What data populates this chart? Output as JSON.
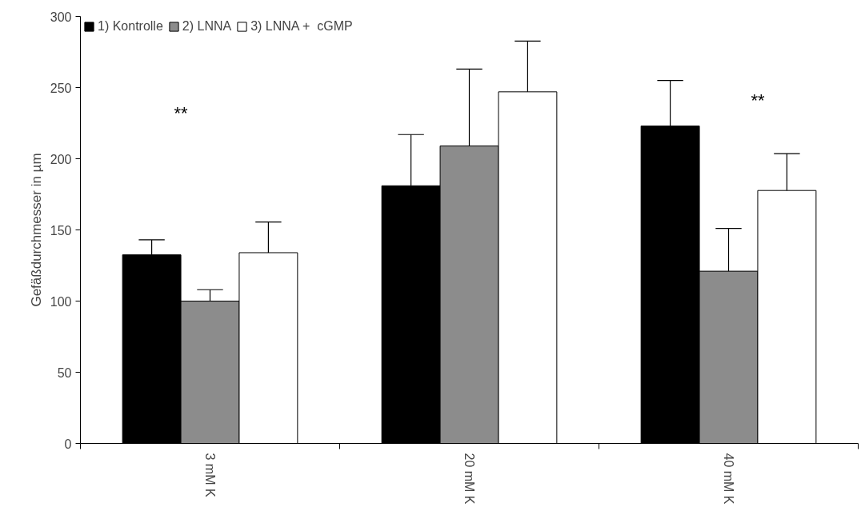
{
  "chart_data": {
    "type": "bar",
    "ylabel": "Gefäßdurchmesser in µm",
    "categories": [
      "3 mM K",
      "20 mM K",
      "40 mM K"
    ],
    "series": [
      {
        "name": "1) Kontrolle",
        "color": "#000000",
        "values": [
          132.5,
          181,
          223
        ],
        "errors": [
          [
            132.5,
            143
          ],
          [
            181,
            217
          ],
          [
            223,
            255
          ]
        ]
      },
      {
        "name": "2) LNNA",
        "color": "#8c8c8c",
        "values": [
          100,
          209,
          121
        ],
        "errors": [
          [
            100,
            108
          ],
          [
            209,
            263
          ],
          [
            121,
            151
          ]
        ]
      },
      {
        "name": "3) LNNA +  cGMP",
        "color": "#ffffff",
        "values": [
          134,
          247,
          177.7
        ],
        "errors": [
          [
            134,
            155.6
          ],
          [
            247,
            282.6
          ],
          [
            177.7,
            203.6
          ]
        ]
      }
    ],
    "ylim": [
      0,
      300
    ],
    "yticks": [
      0,
      50,
      100,
      150,
      200,
      250,
      300
    ],
    "grid": false,
    "legend": "top left",
    "annotations": [
      "**",
      "**"
    ]
  }
}
